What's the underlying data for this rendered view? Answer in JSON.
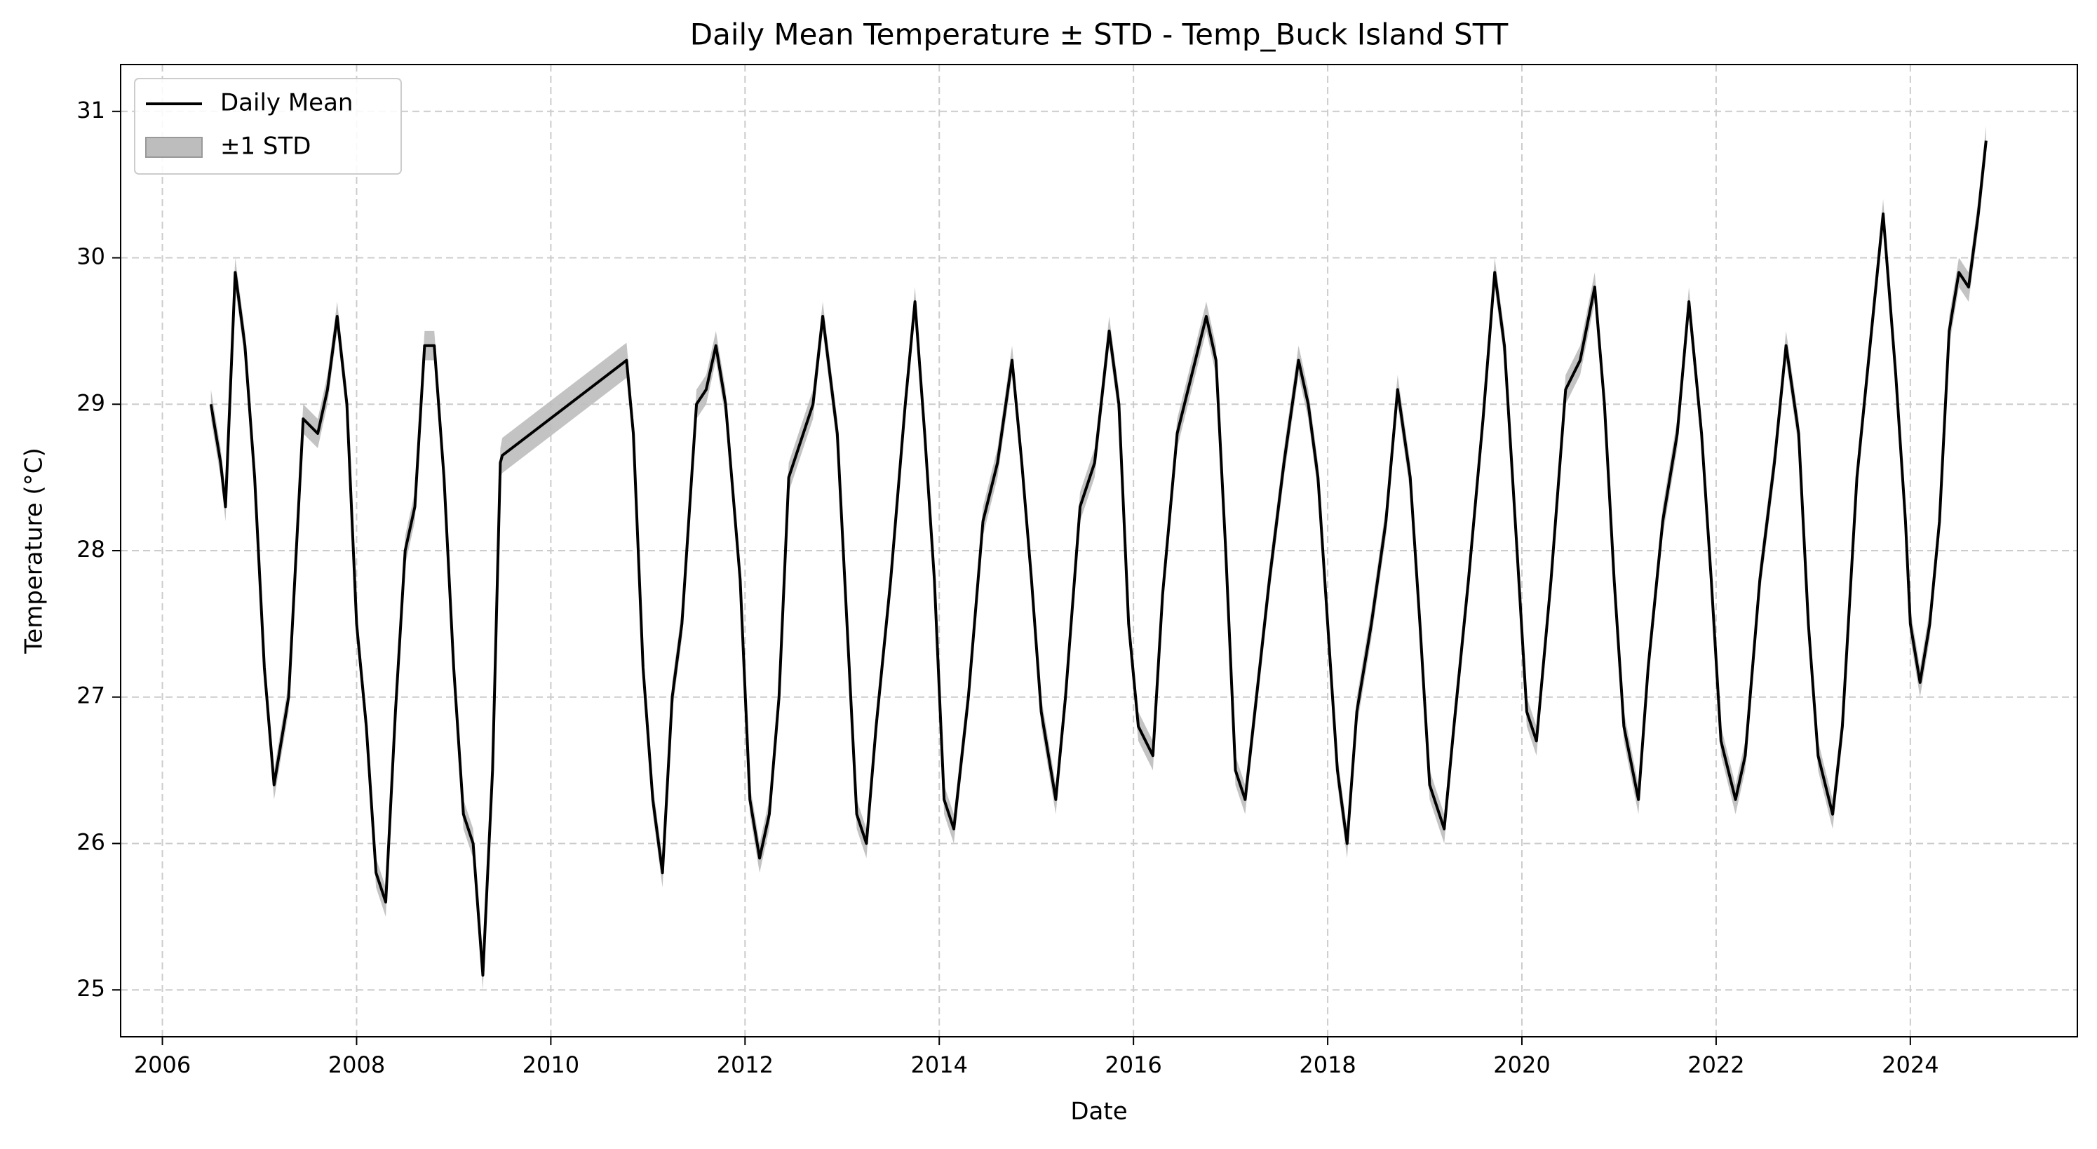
{
  "chart_data": {
    "type": "line",
    "title": "Daily Mean Temperature ± STD - Temp_Buck Island STT",
    "x_label": "Date",
    "y_label": "Temperature (°C)",
    "xlim": [
      2005.57,
      2025.72
    ],
    "ylim": [
      24.68,
      31.32
    ],
    "xticks": [
      2006,
      2008,
      2010,
      2012,
      2014,
      2016,
      2018,
      2020,
      2022,
      2024
    ],
    "yticks": [
      25,
      26,
      27,
      28,
      29,
      30,
      31
    ],
    "grid": true,
    "legend": "upper left",
    "x": [
      2006.5,
      2006.6,
      2006.65,
      2006.75,
      2006.85,
      2006.95,
      2007.05,
      2007.15,
      2007.3,
      2007.45,
      2007.6,
      2007.7,
      2007.8,
      2007.9,
      2008.0,
      2008.1,
      2008.2,
      2008.3,
      2008.4,
      2008.5,
      2008.6,
      2008.7,
      2008.8,
      2008.9,
      2009.0,
      2009.1,
      2009.2,
      2009.3,
      2009.4,
      2009.48,
      2009.5,
      2010.78,
      2010.85,
      2010.95,
      2011.05,
      2011.15,
      2011.25,
      2011.35,
      2011.5,
      2011.6,
      2011.7,
      2011.8,
      2011.95,
      2012.05,
      2012.15,
      2012.25,
      2012.35,
      2012.45,
      2012.6,
      2012.7,
      2012.8,
      2012.95,
      2013.05,
      2013.15,
      2013.25,
      2013.35,
      2013.5,
      2013.65,
      2013.75,
      2013.85,
      2013.95,
      2014.05,
      2014.15,
      2014.3,
      2014.45,
      2014.6,
      2014.75,
      2014.85,
      2014.95,
      2015.05,
      2015.2,
      2015.3,
      2015.45,
      2015.6,
      2015.75,
      2015.85,
      2015.95,
      2016.05,
      2016.2,
      2016.3,
      2016.45,
      2016.6,
      2016.75,
      2016.85,
      2016.95,
      2017.05,
      2017.15,
      2017.25,
      2017.4,
      2017.55,
      2017.7,
      2017.8,
      2017.9,
      2018.0,
      2018.1,
      2018.2,
      2018.3,
      2018.45,
      2018.6,
      2018.72,
      2018.85,
      2018.95,
      2019.05,
      2019.2,
      2019.3,
      2019.45,
      2019.6,
      2019.72,
      2019.82,
      2019.95,
      2020.05,
      2020.15,
      2020.3,
      2020.45,
      2020.6,
      2020.75,
      2020.85,
      2020.95,
      2021.05,
      2021.2,
      2021.3,
      2021.45,
      2021.6,
      2021.72,
      2021.85,
      2021.95,
      2022.05,
      2022.2,
      2022.3,
      2022.45,
      2022.6,
      2022.72,
      2022.85,
      2022.95,
      2023.05,
      2023.2,
      2023.3,
      2023.45,
      2023.6,
      2023.72,
      2023.85,
      2023.95,
      2024.0,
      2024.1,
      2024.2,
      2024.3,
      2024.4,
      2024.5,
      2024.6,
      2024.7,
      2024.78
    ],
    "series": [
      {
        "name": "Daily Mean",
        "color": "#000000",
        "values": [
          29.0,
          28.6,
          28.3,
          29.9,
          29.4,
          28.5,
          27.2,
          26.4,
          27.0,
          28.9,
          28.8,
          29.1,
          29.6,
          29.0,
          27.5,
          26.8,
          25.8,
          25.6,
          26.9,
          28.0,
          28.3,
          29.4,
          29.4,
          28.5,
          27.2,
          26.2,
          26.0,
          25.1,
          26.5,
          28.6,
          28.65,
          29.3,
          28.8,
          27.2,
          26.3,
          25.8,
          27.0,
          27.5,
          29.0,
          29.1,
          29.4,
          29.0,
          27.8,
          26.3,
          25.9,
          26.2,
          27.0,
          28.5,
          28.8,
          29.0,
          29.6,
          28.8,
          27.5,
          26.2,
          26.0,
          26.8,
          27.8,
          29.0,
          29.7,
          28.8,
          27.8,
          26.3,
          26.1,
          27.0,
          28.2,
          28.6,
          29.3,
          28.6,
          27.8,
          26.9,
          26.3,
          27.0,
          28.3,
          28.6,
          29.5,
          29.0,
          27.5,
          26.8,
          26.6,
          27.7,
          28.8,
          29.2,
          29.6,
          29.3,
          28.0,
          26.5,
          26.3,
          26.9,
          27.8,
          28.6,
          29.3,
          29.0,
          28.5,
          27.5,
          26.5,
          26.0,
          26.9,
          27.5,
          28.2,
          29.1,
          28.5,
          27.5,
          26.4,
          26.1,
          26.8,
          27.8,
          28.9,
          29.9,
          29.4,
          28.0,
          26.9,
          26.7,
          27.8,
          29.1,
          29.3,
          29.8,
          29.0,
          27.8,
          26.8,
          26.3,
          27.2,
          28.2,
          28.8,
          29.7,
          28.8,
          27.8,
          26.7,
          26.3,
          26.6,
          27.8,
          28.6,
          29.4,
          28.8,
          27.5,
          26.6,
          26.2,
          26.8,
          28.5,
          29.5,
          30.3,
          29.2,
          28.2,
          27.5,
          27.1,
          27.5,
          28.2,
          29.5,
          29.9,
          29.8,
          30.3,
          30.8
        ]
      }
    ],
    "band": {
      "name": "±1 STD",
      "color": "#bdbdbd",
      "std": [
        0.1,
        0.1,
        0.1,
        0.1,
        0.1,
        0.1,
        0.1,
        0.1,
        0.1,
        0.1,
        0.1,
        0.1,
        0.1,
        0.1,
        0.1,
        0.1,
        0.1,
        0.1,
        0.1,
        0.1,
        0.1,
        0.1,
        0.1,
        0.1,
        0.1,
        0.1,
        0.1,
        0.1,
        0.1,
        0.1,
        0.12,
        0.12,
        0.1,
        0.1,
        0.1,
        0.1,
        0.1,
        0.1,
        0.1,
        0.1,
        0.1,
        0.1,
        0.1,
        0.1,
        0.1,
        0.1,
        0.1,
        0.1,
        0.1,
        0.1,
        0.1,
        0.1,
        0.1,
        0.1,
        0.1,
        0.1,
        0.1,
        0.1,
        0.1,
        0.1,
        0.1,
        0.1,
        0.1,
        0.1,
        0.1,
        0.1,
        0.1,
        0.1,
        0.1,
        0.1,
        0.1,
        0.1,
        0.1,
        0.1,
        0.1,
        0.1,
        0.1,
        0.1,
        0.1,
        0.1,
        0.1,
        0.1,
        0.1,
        0.1,
        0.1,
        0.1,
        0.1,
        0.1,
        0.1,
        0.1,
        0.1,
        0.1,
        0.1,
        0.1,
        0.1,
        0.1,
        0.1,
        0.1,
        0.1,
        0.1,
        0.1,
        0.1,
        0.1,
        0.1,
        0.1,
        0.1,
        0.1,
        0.1,
        0.1,
        0.1,
        0.1,
        0.1,
        0.1,
        0.1,
        0.1,
        0.1,
        0.1,
        0.1,
        0.1,
        0.1,
        0.1,
        0.1,
        0.1,
        0.1,
        0.1,
        0.1,
        0.1,
        0.1,
        0.1,
        0.1,
        0.1,
        0.1,
        0.1,
        0.1,
        0.1,
        0.1,
        0.1,
        0.1,
        0.1,
        0.1,
        0.1,
        0.1,
        0.1,
        0.1,
        0.1,
        0.1,
        0.1,
        0.1,
        0.1,
        0.1,
        0.1
      ]
    }
  }
}
